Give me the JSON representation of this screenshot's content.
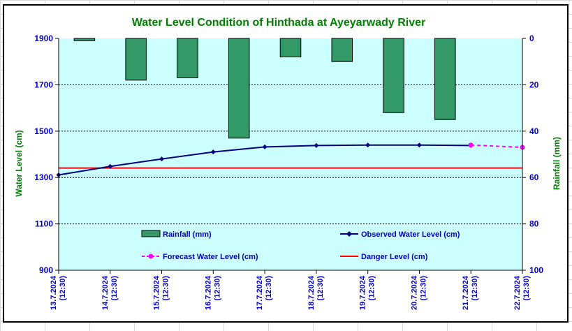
{
  "chart_data": {
    "type": "line+bar",
    "title": "Water Level Condition of Hinthada at Ayeyarwady River",
    "x_dates": [
      "13.7.2024",
      "14.7.2024",
      "15.7.2024",
      "16.7.2024",
      "17.7.2024",
      "18.7.2024",
      "19.7.2024",
      "20.7.2024",
      "21.7.2024",
      "22.7.2024"
    ],
    "x_time": "(12:30)",
    "y_left": {
      "label": "Water Level (cm)",
      "range": [
        900,
        1900
      ],
      "ticks": [
        "900",
        "1100",
        "1300",
        "1500",
        "1700",
        "1900"
      ]
    },
    "y_right": {
      "label": "Rainfall (mm)",
      "range": [
        0,
        100
      ],
      "reversed": true,
      "ticks": [
        "0",
        "20",
        "40",
        "60",
        "80",
        "100"
      ]
    },
    "series": [
      {
        "name": "Rainfall (mm)",
        "type": "bar",
        "axis": "right",
        "color": "#339966",
        "values": [
          1,
          18,
          17,
          43,
          8,
          10,
          32,
          35
        ],
        "x_positions": [
          0.5,
          1.5,
          2.5,
          3.5,
          4.5,
          5.5,
          6.5,
          7.5
        ]
      },
      {
        "name": "Observed Water Level (cm)",
        "type": "line",
        "axis": "left",
        "color": "#000080",
        "x": [
          0,
          1,
          2,
          3,
          4,
          5,
          6,
          7,
          8
        ],
        "values": [
          1311,
          1348,
          1380,
          1410,
          1432,
          1438,
          1440,
          1440,
          1438
        ]
      },
      {
        "name": "Forecast Water Level (cm)",
        "type": "line",
        "axis": "left",
        "color": "#ff00ff",
        "dashed": true,
        "x": [
          8,
          9
        ],
        "values": [
          1440,
          1430
        ]
      },
      {
        "name": "Danger Level (cm)",
        "type": "line",
        "axis": "left",
        "color": "#ff0000",
        "values": [
          1341
        ]
      }
    ],
    "grid": "horizontal-dashed",
    "plot_background": "#ccffff"
  }
}
